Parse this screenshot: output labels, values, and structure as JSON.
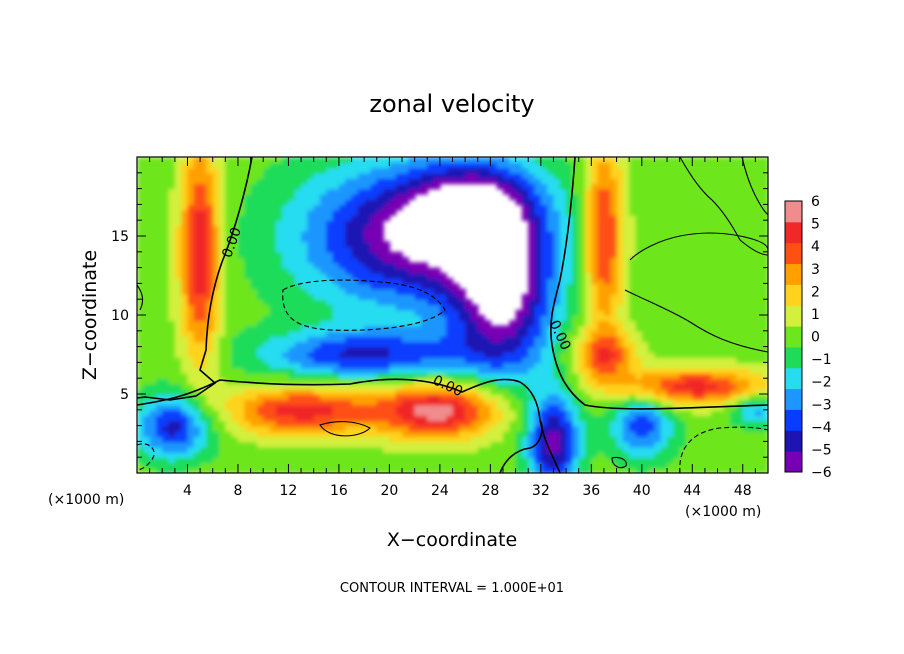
{
  "chart_data": {
    "type": "heatmap",
    "title": "zonal velocity",
    "xlabel": "X−coordinate",
    "ylabel": "Z−coordinate",
    "x_unit_left": "(×1000 m)",
    "x_unit_right": "(×1000 m)",
    "xlim": [
      0,
      50
    ],
    "ylim": [
      0,
      20
    ],
    "x_ticks": [
      4,
      8,
      12,
      16,
      20,
      24,
      28,
      32,
      36,
      40,
      44,
      48
    ],
    "y_ticks": [
      5,
      10,
      15
    ],
    "contour_label": "0.00",
    "contour_interval_text": "CONTOUR INTERVAL = 1.000E+01",
    "colorbar": {
      "levels": [
        -6,
        -5,
        -4,
        -3,
        -2,
        -1,
        0,
        1,
        2,
        3,
        4,
        5,
        6
      ],
      "tick_labels": [
        "6",
        "5",
        "4",
        "3",
        "2",
        "1",
        "0",
        "−1",
        "−2",
        "−3",
        "−4",
        "−5",
        "−6"
      ],
      "colors": [
        "#7800b4",
        "#1e14b4",
        "#0a3cff",
        "#1e96ff",
        "#28dcf0",
        "#1edc5a",
        "#6ee61e",
        "#d2f03c",
        "#ffd21e",
        "#ffa000",
        "#ff5014",
        "#f02828",
        "#f08c8c"
      ]
    },
    "grid": false,
    "legend": "colorbar right"
  }
}
